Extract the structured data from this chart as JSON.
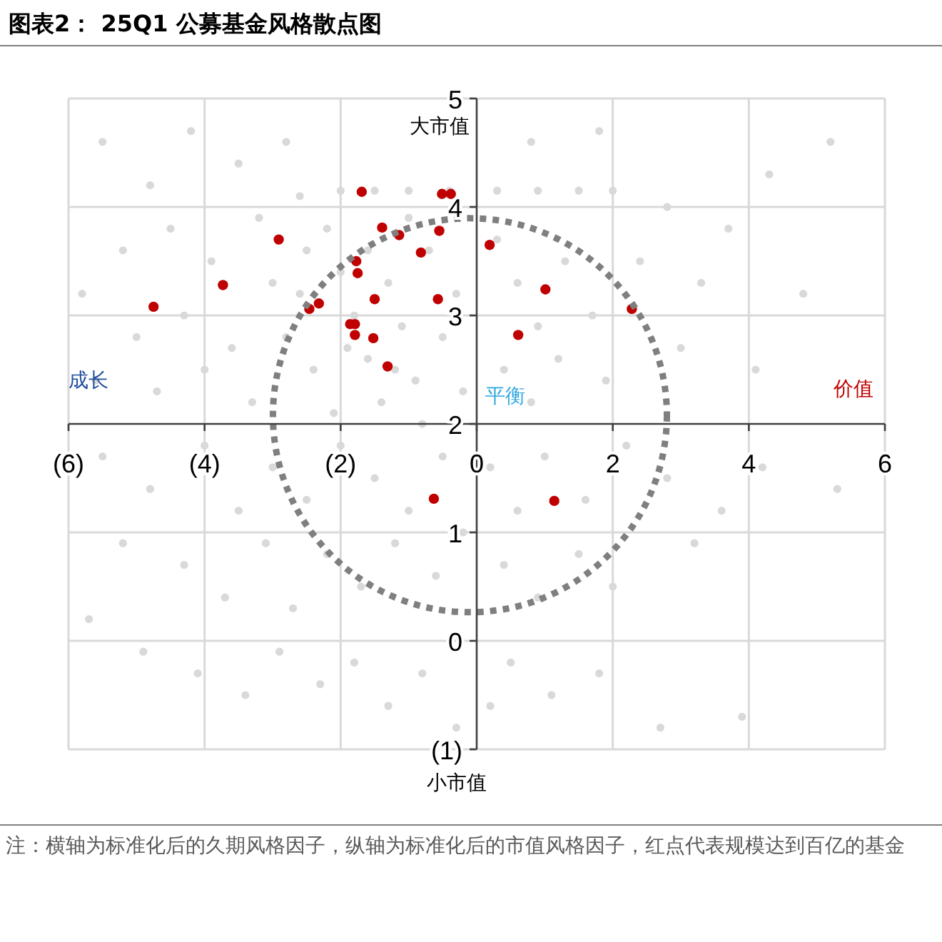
{
  "chart_data": {
    "type": "scatter",
    "title": "图表2： 25Q1 公募基金风格散点图",
    "annotations": [
      "大市值",
      "小市值",
      "成长",
      "价值",
      "平衡",
      "注：横轴为标准化后的久期风格因子，纵轴为标准化后的市值风格因子，红点代表规模达到百亿的基金"
    ],
    "xlim": [
      -6,
      6
    ],
    "ylim": [
      -1,
      5
    ],
    "xticks": [
      {
        "value": -6,
        "label": "(6)"
      },
      {
        "value": -4,
        "label": "(4)"
      },
      {
        "value": -2,
        "label": "(2)"
      },
      0,
      2,
      4,
      6
    ],
    "yticks": [
      {
        "value": -1,
        "label": "(1)"
      },
      0,
      1,
      2,
      3,
      4,
      5
    ],
    "grid": true,
    "marker": "circle",
    "series": [
      {
        "color": "#d9d9d9",
        "x": [
          -5.5,
          -4.8,
          -4.2,
          -3.5,
          -2.8,
          -5.2,
          -4.5,
          -3.9,
          -3.2,
          -2.6,
          -5.8,
          -5.0,
          -4.3,
          -3.6,
          -3.0,
          -2.5,
          -5.6,
          -4.7,
          -4.0,
          -3.3,
          -2.8,
          -2.2,
          -2.0,
          -1.8,
          -1.6,
          -1.4,
          -2.4,
          -2.1,
          -1.9,
          -1.3,
          -1.1,
          -0.9,
          -0.7,
          -0.5,
          -0.3,
          -0.2,
          -1.0,
          -1.6,
          -2.6,
          -0.8,
          -1.2,
          -2.0,
          -1.5,
          -1.0,
          -0.4,
          0.3,
          0.9,
          1.5,
          2.0,
          -5.5,
          -4.8,
          -4.0,
          -3.5,
          -3.0,
          -2.5,
          -2.0,
          -1.5,
          -1.0,
          -0.5,
          -5.2,
          -4.3,
          -3.7,
          -3.1,
          -2.7,
          -2.2,
          -1.7,
          -1.2,
          -0.6,
          -0.2,
          -5.7,
          -4.9,
          -4.1,
          -3.4,
          -2.9,
          -2.3,
          -1.8,
          -1.3,
          -0.8,
          -0.3,
          0.3,
          0.6,
          0.9,
          1.3,
          1.7,
          0.4,
          0.8,
          1.2,
          1.9,
          2.4,
          2.8,
          3.3,
          3.7,
          4.3,
          4.8,
          5.2,
          3.0,
          4.1,
          0.2,
          0.6,
          1.0,
          1.6,
          2.2,
          2.8,
          3.6,
          4.2,
          5.3,
          0.4,
          0.9,
          1.5,
          2.0,
          3.2,
          0.5,
          1.1,
          1.8,
          2.7,
          3.9,
          0.2,
          0.8,
          1.8
        ],
        "values": [
          4.6,
          4.2,
          4.7,
          4.4,
          4.6,
          3.6,
          3.8,
          3.5,
          3.9,
          4.1,
          3.2,
          2.8,
          3.0,
          2.7,
          3.3,
          3.6,
          2.4,
          2.3,
          2.5,
          2.2,
          2.8,
          3.8,
          3.4,
          3.0,
          2.6,
          2.2,
          2.5,
          2.1,
          2.7,
          3.3,
          2.9,
          2.4,
          3.6,
          2.8,
          3.2,
          2.3,
          3.9,
          3.6,
          3.2,
          2.0,
          2.5,
          4.15,
          4.15,
          4.15,
          4.15,
          4.15,
          4.15,
          4.15,
          4.15,
          1.7,
          1.4,
          1.8,
          1.2,
          1.6,
          1.3,
          1.8,
          1.5,
          1.2,
          1.7,
          0.9,
          0.7,
          0.4,
          0.9,
          0.3,
          0.8,
          0.5,
          0.9,
          0.6,
          1.0,
          0.2,
          -0.1,
          -0.3,
          -0.5,
          -0.1,
          -0.4,
          -0.2,
          -0.6,
          -0.3,
          -0.8,
          3.7,
          3.3,
          2.9,
          3.5,
          3.0,
          2.5,
          2.2,
          2.6,
          2.4,
          3.5,
          4.0,
          3.3,
          3.8,
          4.3,
          3.2,
          4.6,
          2.7,
          2.5,
          1.6,
          1.2,
          1.7,
          1.3,
          1.8,
          1.5,
          1.2,
          1.6,
          1.4,
          0.7,
          0.4,
          0.8,
          0.5,
          0.9,
          -0.2,
          -0.5,
          -0.3,
          -0.8,
          -0.7,
          -0.6,
          4.6,
          4.7
        ]
      },
      {
        "color": "#c00000",
        "x": [
          -4.75,
          -3.73,
          -2.91,
          -2.46,
          -2.32,
          -1.69,
          -1.39,
          -1.14,
          -1.77,
          -1.75,
          -1.86,
          -1.79,
          -1.79,
          -1.5,
          -1.52,
          -1.31,
          -0.82,
          -0.55,
          -0.51,
          -0.38,
          -0.57,
          0.19,
          1.01,
          0.61,
          2.28,
          -0.63,
          1.14
        ],
        "values": [
          3.08,
          3.28,
          3.7,
          3.06,
          3.11,
          4.14,
          3.81,
          3.74,
          3.5,
          3.39,
          2.92,
          2.92,
          2.82,
          3.15,
          2.79,
          2.53,
          3.58,
          3.78,
          4.12,
          4.12,
          3.15,
          3.65,
          3.24,
          2.82,
          3.06,
          1.31,
          1.29
        ]
      }
    ]
  }
}
